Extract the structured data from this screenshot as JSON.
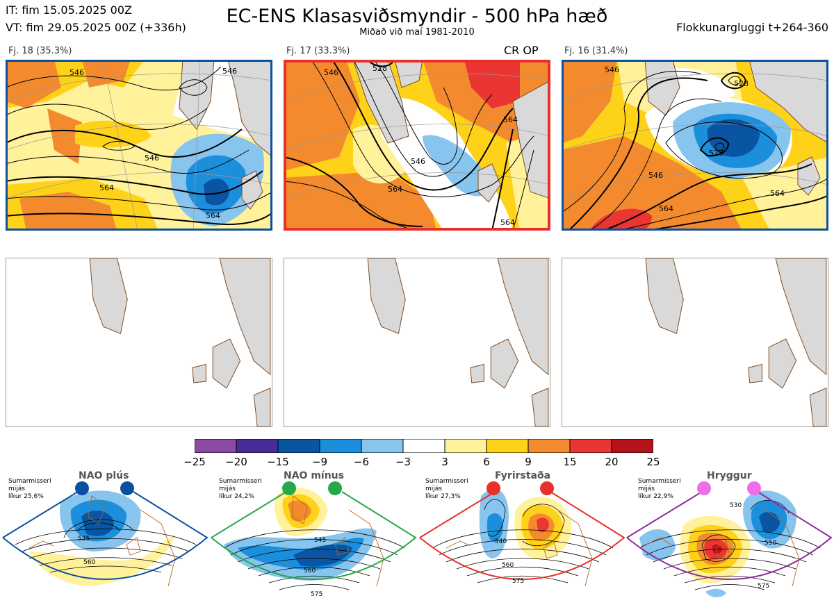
{
  "header": {
    "init_time": "IT: fim 15.05.2025 00Z",
    "valid_time": "VT: fim 29.05.2025 00Z  (+336h)",
    "title": "EC-ENS Klasasviðsmyndir - 500 hPa hæð",
    "subtitle": "Miðað við maí 1981-2010",
    "cluster_window": "Flokkunargluggi t+264-360"
  },
  "clusters": [
    {
      "label": "Fj. 18 (35.3%)",
      "tag": "",
      "border_color": "#0a50a0",
      "contour_labels": [
        "546",
        "546",
        "546",
        "564",
        "564"
      ]
    },
    {
      "label": "Fj. 17 (33.3%)",
      "tag": "CR OP",
      "border_color": "#e8302a",
      "contour_labels": [
        "528",
        "546",
        "546",
        "564",
        "564",
        "564"
      ]
    },
    {
      "label": "Fj. 16 (31.4%)",
      "tag": "",
      "border_color": "#0a50a0",
      "contour_labels": [
        "528",
        "528",
        "546",
        "546",
        "564",
        "564"
      ]
    }
  ],
  "colors": {
    "land": "#d9d9d9",
    "coast": "#7a4a20",
    "contour": "#000000"
  },
  "chart_data": {
    "type": "heatmap",
    "title": "EC-ENS Klasasviðsmyndir - 500 hPa hæð",
    "subtitle": "Miðað við maí 1981-2010",
    "colorbar": {
      "ticks": [
        -25,
        -20,
        -15,
        -9,
        -6,
        -3,
        3,
        6,
        9,
        15,
        20,
        25
      ],
      "colors": [
        "#8b4aa3",
        "#472c97",
        "#0a55a3",
        "#1c8fdc",
        "#87c4ee",
        "#ffffff",
        "#fff29b",
        "#ffd21a",
        "#f38a2e",
        "#ea3532",
        "#b5121c"
      ]
    },
    "clusters": [
      {
        "name": "Fj. 18",
        "probability_pct": 35.3
      },
      {
        "name": "Fj. 17",
        "probability_pct": 33.3,
        "note": "CR OP"
      },
      {
        "name": "Fj. 16",
        "probability_pct": 31.4
      }
    ],
    "regimes": [
      {
        "name": "NAO plús",
        "season": "Sumarmisseri",
        "stat": "mijás",
        "likelihood": "líkur 25,6%",
        "color": "#0a50a0",
        "contour_labels": [
          "535",
          "560"
        ]
      },
      {
        "name": "NAO mínus",
        "season": "Sumarmisseri",
        "stat": "mijás",
        "likelihood": "líkur 24,2%",
        "color": "#26a84a",
        "contour_labels": [
          "545",
          "560",
          "575"
        ]
      },
      {
        "name": "Fyrirstaða",
        "season": "Sumarmisseri",
        "stat": "mijás",
        "likelihood": "líkur 27,3%",
        "color": "#e8302a",
        "contour_labels": [
          "540",
          "560",
          "575"
        ]
      },
      {
        "name": "Hryggur",
        "season": "Sumarmisseri",
        "stat": "mijás",
        "likelihood": "líkur 22,9%",
        "color": "#ee6ee8",
        "contour_labels": [
          "530",
          "550",
          "575"
        ]
      }
    ]
  }
}
